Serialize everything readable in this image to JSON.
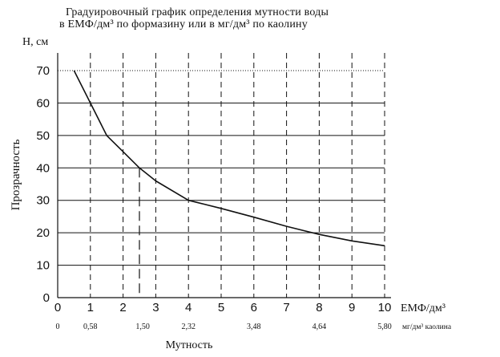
{
  "chart_data": {
    "type": "line",
    "title_line1": "Градуировочный график определения мутности воды",
    "title_line2": "в ЕМФ/дм³ по формазину или в мг/дм³ по каолину",
    "ylabel_top": "H, см",
    "ylabel_side": "Прозрачность",
    "xlabel_units": "ЕМФ/дм³",
    "xlabel2_units": "мг/дм³ каолина",
    "xlabel_bottom": "Мутность",
    "xlim": [
      0,
      10
    ],
    "ylim": [
      0,
      70
    ],
    "x_ticks": [
      "0",
      "1",
      "2",
      "3",
      "4",
      "5",
      "6",
      "7",
      "8",
      "9",
      "10"
    ],
    "y_ticks": [
      "0",
      "10",
      "20",
      "30",
      "40",
      "50",
      "60",
      "70"
    ],
    "x2_ticks": [
      {
        "x": 0,
        "label": "0"
      },
      {
        "x": 1,
        "label": "0,58"
      },
      {
        "x": 2.6,
        "label": "1,50"
      },
      {
        "x": 4,
        "label": "2,32"
      },
      {
        "x": 6,
        "label": "3,48"
      },
      {
        "x": 8,
        "label": "4,64"
      },
      {
        "x": 10,
        "label": "5,80"
      }
    ],
    "grid": {
      "horizontal_solid": true,
      "vertical_dashed": true
    },
    "series": [
      {
        "x": [
          0.5,
          1.0,
          1.5,
          2.0,
          2.5,
          3.0,
          4.0,
          5.0,
          6.0,
          7.0,
          8.0,
          9.0,
          10.0
        ],
        "y": [
          70,
          60,
          50,
          45,
          40,
          36,
          30,
          27.5,
          24.8,
          22,
          19.5,
          17.5,
          16
        ]
      }
    ],
    "marker_line": {
      "x": 2.5,
      "y": 40
    }
  }
}
